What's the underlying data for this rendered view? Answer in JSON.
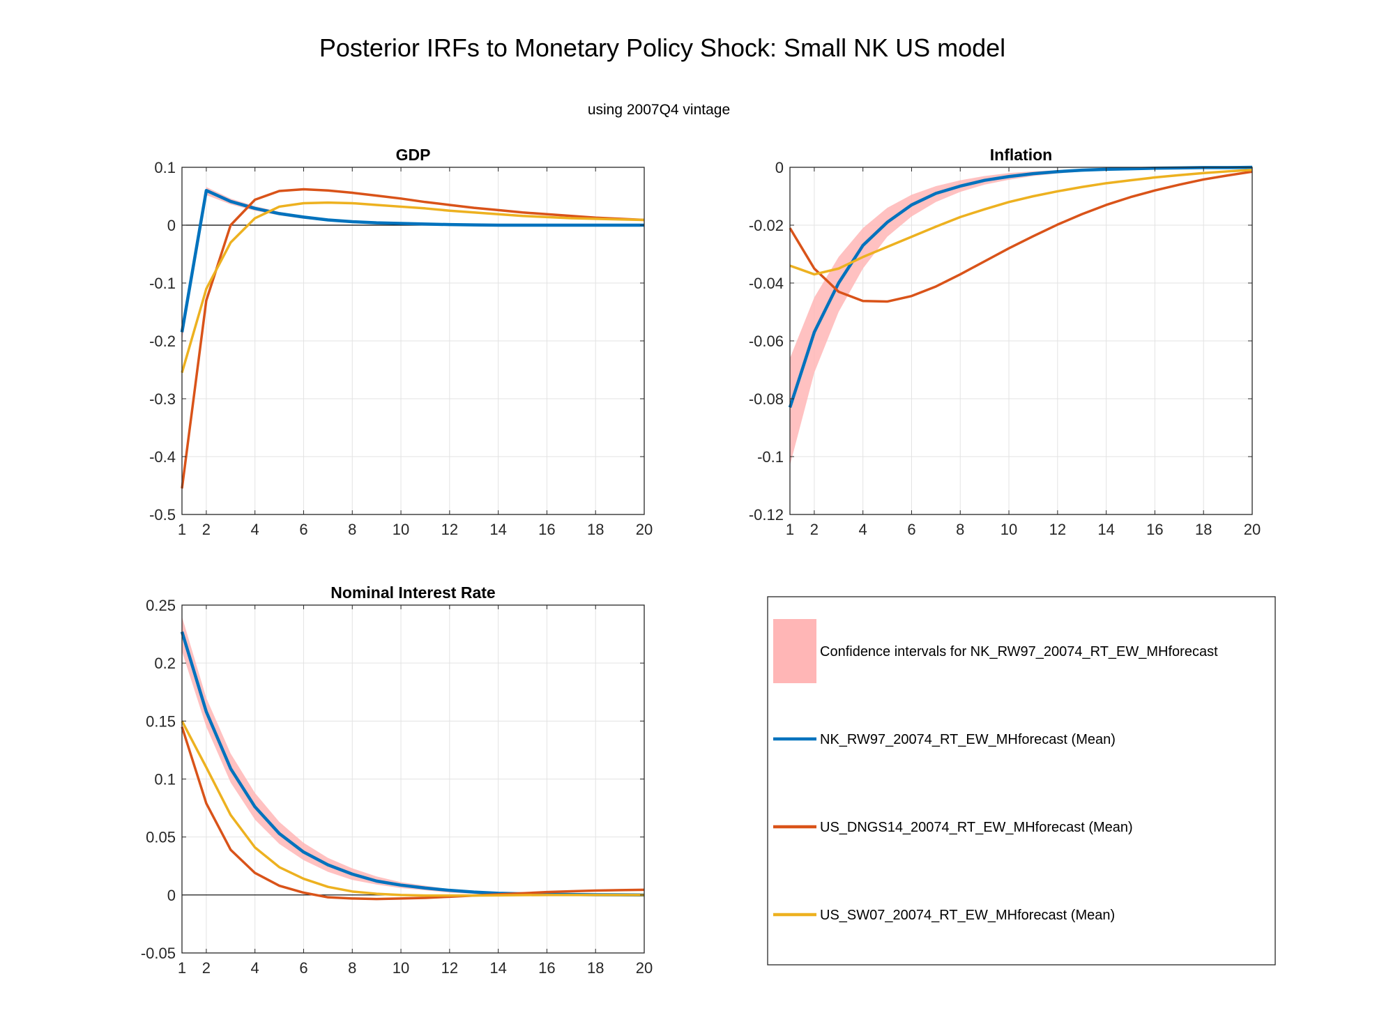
{
  "figure": {
    "title": "Posterior IRFs to Monetary Policy Shock: Small NK US model",
    "subtitle": "using 2007Q4 vintage"
  },
  "colors": {
    "band": "#ffb6b6",
    "nk_mean": "#0072bd",
    "dngs_mean": "#d95319",
    "sw07_mean": "#edb120"
  },
  "legend": {
    "placement": "bottom-right panel",
    "entries": [
      {
        "label": "Confidence intervals for NK_RW97_20074_RT_EW_MHforecast",
        "kind": "band",
        "color": "#ffb6b6"
      },
      {
        "label": "NK_RW97_20074_RT_EW_MHforecast (Mean)",
        "kind": "line",
        "color": "#0072bd"
      },
      {
        "label": "US_DNGS14_20074_RT_EW_MHforecast (Mean)",
        "kind": "line",
        "color": "#d95319"
      },
      {
        "label": "US_SW07_20074_RT_EW_MHforecast (Mean)",
        "kind": "line",
        "color": "#edb120"
      }
    ]
  },
  "chart_data": [
    {
      "type": "line",
      "title": "GDP",
      "xlim": [
        1,
        20
      ],
      "ylim": [
        -0.5,
        0.1
      ],
      "xticks": [
        1,
        2,
        4,
        6,
        8,
        10,
        12,
        14,
        16,
        18,
        20
      ],
      "xtick_labels": [
        "1",
        "2",
        "4",
        "6",
        "8",
        "10",
        "12",
        "14",
        "16",
        "18",
        "20"
      ],
      "yticks": [
        -0.5,
        -0.4,
        -0.3,
        -0.2,
        -0.1,
        0,
        0.1
      ],
      "ytick_labels": [
        "-0.5",
        "-0.4",
        "-0.3",
        "-0.2",
        "-0.1",
        "0",
        "0.1"
      ],
      "grid": true,
      "zero_line": true,
      "x": [
        1,
        2,
        3,
        4,
        5,
        6,
        7,
        8,
        9,
        10,
        11,
        12,
        13,
        14,
        15,
        16,
        17,
        18,
        19,
        20
      ],
      "band": {
        "name": "Confidence intervals for NK_RW97_20074_RT_EW_MHforecast",
        "lower": [
          -0.2,
          0.052,
          0.036,
          0.025,
          0.017,
          0.011,
          0.007,
          0.005,
          0.003,
          0.002,
          0.001,
          0.0005,
          0.0,
          0.0,
          0.0,
          0.0,
          0.0,
          0.0,
          0.0,
          0.0
        ],
        "upper": [
          -0.17,
          0.066,
          0.046,
          0.033,
          0.023,
          0.016,
          0.011,
          0.008,
          0.005,
          0.003,
          0.002,
          0.0015,
          0.001,
          0.0005,
          0.0,
          0.0,
          0.0,
          0.0,
          0.0,
          0.0
        ]
      },
      "series": [
        {
          "name": "NK_RW97_20074_RT_EW_MHforecast (Mean)",
          "color_key": "nk_mean",
          "values": [
            -0.185,
            0.06,
            0.041,
            0.029,
            0.02,
            0.014,
            0.009,
            0.006,
            0.004,
            0.003,
            0.002,
            0.001,
            0.0005,
            0.0,
            0.0,
            0.0,
            0.0,
            0.0,
            0.0,
            0.0
          ]
        },
        {
          "name": "US_DNGS14_20074_RT_EW_MHforecast (Mean)",
          "color_key": "dngs_mean",
          "values": [
            -0.455,
            -0.13,
            0.0,
            0.044,
            0.059,
            0.062,
            0.06,
            0.056,
            0.051,
            0.046,
            0.04,
            0.035,
            0.03,
            0.026,
            0.022,
            0.019,
            0.016,
            0.013,
            0.011,
            0.009
          ]
        },
        {
          "name": "US_SW07_20074_RT_EW_MHforecast (Mean)",
          "color_key": "sw07_mean",
          "values": [
            -0.255,
            -0.11,
            -0.03,
            0.012,
            0.032,
            0.038,
            0.039,
            0.038,
            0.035,
            0.032,
            0.029,
            0.025,
            0.022,
            0.019,
            0.016,
            0.014,
            0.012,
            0.011,
            0.01,
            0.009
          ]
        }
      ]
    },
    {
      "type": "line",
      "title": "Inflation",
      "xlim": [
        1,
        20
      ],
      "ylim": [
        -0.12,
        0
      ],
      "xticks": [
        1,
        2,
        4,
        6,
        8,
        10,
        12,
        14,
        16,
        18,
        20
      ],
      "xtick_labels": [
        "1",
        "2",
        "4",
        "6",
        "8",
        "10",
        "12",
        "14",
        "16",
        "18",
        "20"
      ],
      "yticks": [
        -0.12,
        -0.1,
        -0.08,
        -0.06,
        -0.04,
        -0.02,
        0
      ],
      "ytick_labels": [
        "-0.12",
        "-0.1",
        "-0.08",
        "-0.06",
        "-0.04",
        "-0.02",
        "0"
      ],
      "grid": true,
      "zero_line": false,
      "x": [
        1,
        2,
        3,
        4,
        5,
        6,
        7,
        8,
        9,
        10,
        11,
        12,
        13,
        14,
        15,
        16,
        17,
        18,
        19,
        20
      ],
      "band": {
        "name": "Confidence intervals for NK_RW97_20074_RT_EW_MHforecast",
        "lower": [
          -0.103,
          -0.071,
          -0.05,
          -0.035,
          -0.024,
          -0.017,
          -0.012,
          -0.0085,
          -0.006,
          -0.0043,
          -0.003,
          -0.0021,
          -0.0015,
          -0.001,
          -0.0007,
          -0.0005,
          -0.0003,
          -0.0002,
          -0.0001,
          -0.0001
        ],
        "upper": [
          -0.066,
          -0.045,
          -0.031,
          -0.021,
          -0.014,
          -0.0095,
          -0.0065,
          -0.0045,
          -0.003,
          -0.002,
          -0.0014,
          -0.001,
          -0.0007,
          -0.0005,
          -0.0003,
          -0.0002,
          -0.0001,
          0.0,
          0.0,
          0.0
        ]
      },
      "series": [
        {
          "name": "NK_RW97_20074_RT_EW_MHforecast (Mean)",
          "color_key": "nk_mean",
          "values": [
            -0.083,
            -0.057,
            -0.04,
            -0.027,
            -0.019,
            -0.013,
            -0.009,
            -0.0065,
            -0.0045,
            -0.0032,
            -0.0022,
            -0.0015,
            -0.001,
            -0.0007,
            -0.0005,
            -0.0003,
            -0.0002,
            -0.0001,
            -0.0001,
            0.0
          ]
        },
        {
          "name": "US_DNGS14_20074_RT_EW_MHforecast (Mean)",
          "color_key": "dngs_mean",
          "values": [
            -0.021,
            -0.035,
            -0.043,
            -0.0462,
            -0.0464,
            -0.0445,
            -0.0412,
            -0.037,
            -0.0325,
            -0.028,
            -0.0238,
            -0.0198,
            -0.0162,
            -0.013,
            -0.0103,
            -0.008,
            -0.006,
            -0.0042,
            -0.0028,
            -0.0015
          ]
        },
        {
          "name": "US_SW07_20074_RT_EW_MHforecast (Mean)",
          "color_key": "sw07_mean",
          "values": [
            -0.034,
            -0.037,
            -0.035,
            -0.031,
            -0.0275,
            -0.024,
            -0.0205,
            -0.0172,
            -0.0145,
            -0.012,
            -0.01,
            -0.0083,
            -0.0068,
            -0.0055,
            -0.0045,
            -0.0035,
            -0.0027,
            -0.002,
            -0.0014,
            -0.0009
          ]
        }
      ]
    },
    {
      "type": "line",
      "title": "Nominal Interest Rate",
      "xlim": [
        1,
        20
      ],
      "ylim": [
        -0.05,
        0.25
      ],
      "xticks": [
        1,
        2,
        4,
        6,
        8,
        10,
        12,
        14,
        16,
        18,
        20
      ],
      "xtick_labels": [
        "1",
        "2",
        "4",
        "6",
        "8",
        "10",
        "12",
        "14",
        "16",
        "18",
        "20"
      ],
      "yticks": [
        -0.05,
        0,
        0.05,
        0.1,
        0.15,
        0.2,
        0.25
      ],
      "ytick_labels": [
        "-0.05",
        "0",
        "0.05",
        "0.1",
        "0.15",
        "0.2",
        "0.25"
      ],
      "grid": true,
      "zero_line": true,
      "x": [
        1,
        2,
        3,
        4,
        5,
        6,
        7,
        8,
        9,
        10,
        11,
        12,
        13,
        14,
        15,
        16,
        17,
        18,
        19,
        20
      ],
      "band": {
        "name": "Confidence intervals for NK_RW97_20074_RT_EW_MHforecast",
        "lower": [
          0.21,
          0.145,
          0.097,
          0.065,
          0.044,
          0.03,
          0.02,
          0.013,
          0.009,
          0.006,
          0.004,
          0.002,
          0.001,
          0.0005,
          0.0,
          0.0,
          0.0,
          0.0,
          0.0,
          0.0
        ],
        "upper": [
          0.24,
          0.17,
          0.122,
          0.088,
          0.063,
          0.045,
          0.032,
          0.023,
          0.016,
          0.011,
          0.008,
          0.005,
          0.0035,
          0.0025,
          0.0015,
          0.001,
          0.0007,
          0.0005,
          0.0003,
          0.0002
        ]
      },
      "series": [
        {
          "name": "NK_RW97_20074_RT_EW_MHforecast (Mean)",
          "color_key": "nk_mean",
          "values": [
            0.227,
            0.158,
            0.109,
            0.076,
            0.053,
            0.037,
            0.026,
            0.018,
            0.012,
            0.0085,
            0.006,
            0.004,
            0.0025,
            0.0015,
            0.001,
            0.0006,
            0.0004,
            0.0002,
            0.0001,
            0.0
          ]
        },
        {
          "name": "US_DNGS14_20074_RT_EW_MHforecast (Mean)",
          "color_key": "dngs_mean",
          "values": [
            0.145,
            0.079,
            0.039,
            0.019,
            0.008,
            0.002,
            -0.002,
            -0.003,
            -0.0035,
            -0.003,
            -0.0025,
            -0.0015,
            -0.0005,
            0.0005,
            0.0015,
            0.0025,
            0.0032,
            0.0038,
            0.0042,
            0.0045
          ]
        },
        {
          "name": "US_SW07_20074_RT_EW_MHforecast (Mean)",
          "color_key": "sw07_mean",
          "values": [
            0.15,
            0.11,
            0.069,
            0.041,
            0.024,
            0.014,
            0.007,
            0.003,
            0.001,
            0.0,
            -0.0005,
            -0.0005,
            -0.0005,
            -0.0003,
            -0.0001,
            0.0,
            0.0,
            0.0,
            0.0,
            0.0
          ]
        }
      ]
    }
  ]
}
